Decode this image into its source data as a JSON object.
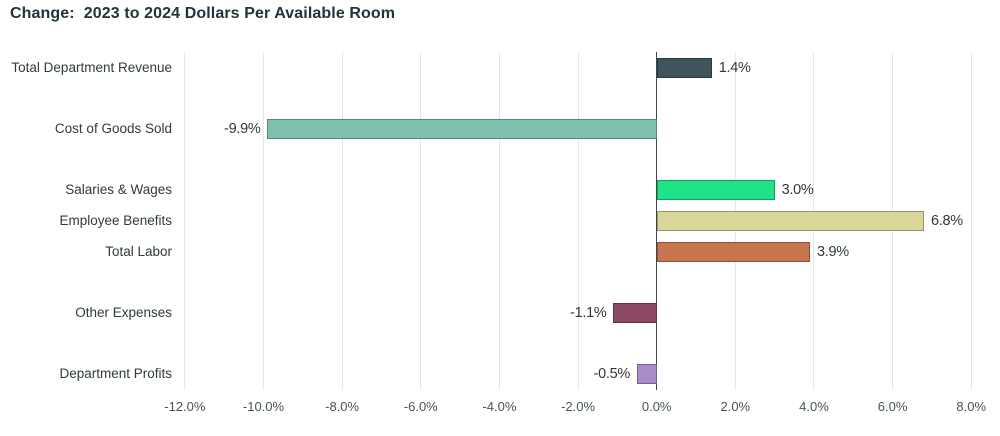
{
  "title": "Change:  2023 to 2024 Dollars Per Available Room",
  "colors": {
    "background": "#ffffff",
    "title_text": "#22333a",
    "category_text": "#2f3b40",
    "value_text": "#2e383c",
    "tick_text": "#47545a",
    "gridline": "#e4e7e7",
    "zero_line": "#3a484e",
    "bar_border": "rgba(0,0,0,0.30)"
  },
  "chart_data": {
    "type": "bar",
    "orientation": "horizontal",
    "title": "Change:  2023 to 2024 Dollars Per Available Room",
    "categories": [
      "Total Department Revenue",
      "Cost of Goods Sold",
      "Salaries & Wages",
      "Employee Benefits",
      "Total Labor",
      "Other Expenses",
      "Department Profits"
    ],
    "values": [
      1.4,
      -9.9,
      3.0,
      6.8,
      3.9,
      -1.1,
      -0.5
    ],
    "value_labels": [
      "1.4%",
      "-9.9%",
      "3.0%",
      "6.8%",
      "3.9%",
      "-1.1%",
      "-0.5%"
    ],
    "bar_colors": [
      "#42545b",
      "#7fbfae",
      "#1fe287",
      "#d9d699",
      "#c8744f",
      "#8c4a67",
      "#ab8ccb"
    ],
    "row_slots": [
      0,
      2,
      4,
      5,
      6,
      8,
      10
    ],
    "x_ticks": [
      -12,
      -10,
      -8,
      -6,
      -4,
      -2,
      0,
      2,
      4,
      6,
      8
    ],
    "x_tick_labels": [
      "-12.0%",
      "-10.0%",
      "-8.0%",
      "-6.0%",
      "-4.0%",
      "-2.0%",
      "0.0%",
      "2.0%",
      "4.0%",
      "6.0%",
      "8.0%"
    ],
    "xlim": [
      -12.2,
      8.35
    ],
    "xlabel": "",
    "ylabel": "",
    "grid": true,
    "legend": false
  }
}
